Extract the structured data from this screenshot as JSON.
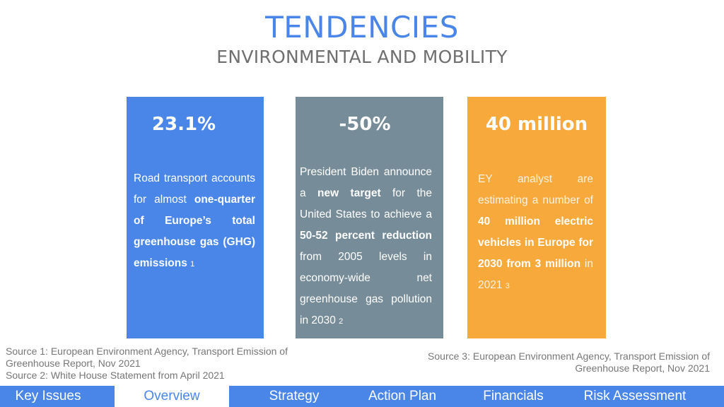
{
  "header": {
    "title": "TENDENCIES",
    "subtitle": "ENVIRONMENTAL AND MOBILITY"
  },
  "cards": [
    {
      "stat": "23.1%",
      "color": "#4a86e8",
      "text_1": "Road transport accounts for almost ",
      "bold_1": "one-quarter of Europe’s total greenhouse gas (GHG) emissions",
      "footnote": "1"
    },
    {
      "stat": "-50%",
      "color": "#768c98",
      "text_1": "President Biden announce a ",
      "bold_1": "new target",
      "text_2": " for the United States to achieve a ",
      "bold_2": "50-52 percent reduction",
      "text_3": " from 2005 levels in economy-wide net greenhouse gas pollution in 2030",
      "footnote": "2"
    },
    {
      "stat": "40 million",
      "color": "#f8a93c",
      "text_1": "EY analyst are estimating a number of ",
      "bold_1": "40 million electric vehicles in Europe for 2030 from 3 million",
      "text_2": " in 2021",
      "footnote": "3"
    }
  ],
  "sources": {
    "left_1": "Source 1: European Environment Agency, Transport Emission of Greenhouse Report, Nov 2021",
    "left_2": "Source 2: White House Statement from April 2021",
    "right": "Source 3: European Environment Agency, Transport Emission of Greenhouse Report, Nov 2021"
  },
  "nav": {
    "items": [
      "Key Issues",
      "Overview",
      "Strategy",
      "Action Plan",
      "Financials",
      "Risk Assessment"
    ],
    "active": "Overview"
  }
}
